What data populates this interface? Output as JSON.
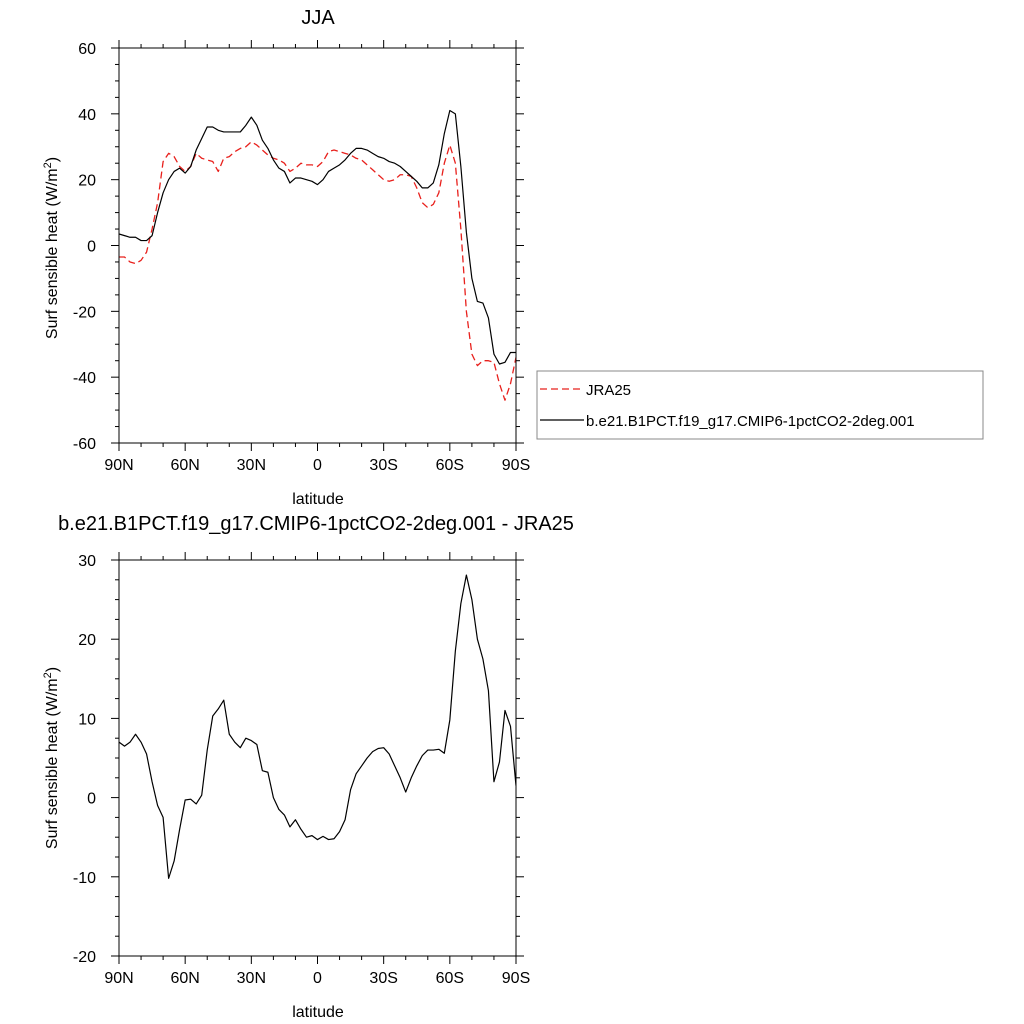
{
  "chart_data": [
    {
      "type": "line",
      "title": "JJA",
      "xlabel": "latitude",
      "ylabel": "Surf sensible heat (W/m2)",
      "ylabel_main": "Surf sensible heat (W/m",
      "ylabel_sup": "2",
      "ylabel_close": ")",
      "xlim": [
        90,
        -90
      ],
      "ylim": [
        -60,
        60
      ],
      "xticks": [
        90,
        60,
        30,
        0,
        -30,
        -60,
        -90
      ],
      "xtick_labels": [
        "90N",
        "60N",
        "30N",
        "0",
        "30S",
        "60S",
        "90S"
      ],
      "yticks": [
        -60,
        -40,
        -20,
        0,
        20,
        40,
        60
      ],
      "ytick_labels": [
        "-60",
        "-40",
        "-20",
        "0",
        "20",
        "40",
        "60"
      ],
      "legend_position": "right-outside",
      "series": [
        {
          "name": "JRA25",
          "color": "#e8201c",
          "dash": "dashed",
          "points": [
            [
              90,
              -3.5
            ],
            [
              87.5,
              -3.5
            ],
            [
              85,
              -5
            ],
            [
              82.5,
              -5.5
            ],
            [
              80,
              -4.5
            ],
            [
              77.5,
              -2
            ],
            [
              75,
              5
            ],
            [
              72.5,
              13
            ],
            [
              70,
              25.5
            ],
            [
              67.5,
              28
            ],
            [
              65,
              27
            ],
            [
              62.5,
              24
            ],
            [
              60,
              22.5
            ],
            [
              57.5,
              24
            ],
            [
              55,
              28
            ],
            [
              52.5,
              26.5
            ],
            [
              50,
              26
            ],
            [
              47.5,
              25.5
            ],
            [
              45,
              22.5
            ],
            [
              42.5,
              26.5
            ],
            [
              40,
              27
            ],
            [
              37.5,
              28.5
            ],
            [
              35,
              29.5
            ],
            [
              32.5,
              30
            ],
            [
              30,
              31.5
            ],
            [
              27.5,
              30.5
            ],
            [
              25,
              29
            ],
            [
              22.5,
              27.5
            ],
            [
              20,
              26.5
            ],
            [
              17.5,
              26
            ],
            [
              15,
              25
            ],
            [
              12.5,
              22.5
            ],
            [
              10,
              23.5
            ],
            [
              7.5,
              25
            ],
            [
              5,
              24.5
            ],
            [
              2.5,
              24.5
            ],
            [
              0,
              24
            ],
            [
              -2.5,
              25.5
            ],
            [
              -5,
              28.5
            ],
            [
              -7.5,
              29
            ],
            [
              -10,
              28.5
            ],
            [
              -12.5,
              28
            ],
            [
              -15,
              27.5
            ],
            [
              -17.5,
              26.5
            ],
            [
              -20,
              26
            ],
            [
              -22.5,
              24.5
            ],
            [
              -25,
              23
            ],
            [
              -27.5,
              21.5
            ],
            [
              -30,
              20
            ],
            [
              -32.5,
              19.5
            ],
            [
              -35,
              20
            ],
            [
              -37.5,
              21.5
            ],
            [
              -40,
              21.5
            ],
            [
              -42.5,
              21
            ],
            [
              -45,
              17.5
            ],
            [
              -47.5,
              13
            ],
            [
              -50,
              11.5
            ],
            [
              -52.5,
              12.5
            ],
            [
              -55,
              16
            ],
            [
              -57.5,
              25
            ],
            [
              -60,
              30.5
            ],
            [
              -62.5,
              25
            ],
            [
              -65,
              5
            ],
            [
              -67.5,
              -20
            ],
            [
              -70,
              -33
            ],
            [
              -72.5,
              -36.5
            ],
            [
              -75,
              -35
            ],
            [
              -77.5,
              -35
            ],
            [
              -80,
              -35.5
            ],
            [
              -82.5,
              -42
            ],
            [
              -85,
              -47
            ],
            [
              -87.5,
              -42
            ],
            [
              -90,
              -34
            ]
          ]
        },
        {
          "name": "b.e21.B1PCT.f19_g17.CMIP6-1pctCO2-2deg.001",
          "color": "#000000",
          "dash": "solid",
          "points": [
            [
              90,
              3.5
            ],
            [
              87.5,
              3
            ],
            [
              85,
              2.5
            ],
            [
              82.5,
              2.5
            ],
            [
              80,
              1.5
            ],
            [
              77.5,
              1.5
            ],
            [
              75,
              3
            ],
            [
              72.5,
              10
            ],
            [
              70,
              16
            ],
            [
              67.5,
              20
            ],
            [
              65,
              22.5
            ],
            [
              62.5,
              23.5
            ],
            [
              60,
              22
            ],
            [
              57.5,
              24
            ],
            [
              55,
              29
            ],
            [
              52.5,
              32.5
            ],
            [
              50,
              36
            ],
            [
              47.5,
              36
            ],
            [
              45,
              35
            ],
            [
              42.5,
              34.5
            ],
            [
              40,
              34.5
            ],
            [
              37.5,
              34.5
            ],
            [
              35,
              34.5
            ],
            [
              32.5,
              36.5
            ],
            [
              30,
              39
            ],
            [
              27.5,
              36.5
            ],
            [
              25,
              32
            ],
            [
              22.5,
              29.5
            ],
            [
              20,
              26
            ],
            [
              17.5,
              23.5
            ],
            [
              15,
              22.5
            ],
            [
              12.5,
              19
            ],
            [
              10,
              20.5
            ],
            [
              7.5,
              20.5
            ],
            [
              5,
              20
            ],
            [
              2.5,
              19.5
            ],
            [
              0,
              18.5
            ],
            [
              -2.5,
              20
            ],
            [
              -5,
              22.5
            ],
            [
              -7.5,
              23.5
            ],
            [
              -10,
              24.5
            ],
            [
              -12.5,
              26
            ],
            [
              -15,
              28
            ],
            [
              -17.5,
              29.5
            ],
            [
              -20,
              29.5
            ],
            [
              -22.5,
              29
            ],
            [
              -25,
              28
            ],
            [
              -27.5,
              27
            ],
            [
              -30,
              26.5
            ],
            [
              -32.5,
              25.5
            ],
            [
              -35,
              25
            ],
            [
              -37.5,
              24
            ],
            [
              -40,
              22.5
            ],
            [
              -42.5,
              21
            ],
            [
              -45,
              19.5
            ],
            [
              -47.5,
              17.5
            ],
            [
              -50,
              17.5
            ],
            [
              -52.5,
              19
            ],
            [
              -55,
              24.5
            ],
            [
              -57.5,
              34
            ],
            [
              -60,
              41
            ],
            [
              -62.5,
              40
            ],
            [
              -65,
              24
            ],
            [
              -67.5,
              4
            ],
            [
              -70,
              -10
            ],
            [
              -72.5,
              -17
            ],
            [
              -75,
              -17.5
            ],
            [
              -77.5,
              -22
            ],
            [
              -80,
              -33
            ],
            [
              -82.5,
              -36
            ],
            [
              -85,
              -35.5
            ],
            [
              -87.5,
              -32.5
            ],
            [
              -90,
              -32.5
            ]
          ]
        }
      ]
    },
    {
      "type": "line",
      "title": "b.e21.B1PCT.f19_g17.CMIP6-1pctCO2-2deg.001 - JRA25",
      "xlabel": "latitude",
      "ylabel": "Surf sensible heat (W/m2)",
      "ylabel_main": "Surf sensible heat (W/m",
      "ylabel_sup": "2",
      "ylabel_close": ")",
      "xlim": [
        90,
        -90
      ],
      "ylim": [
        -20,
        30
      ],
      "xticks": [
        90,
        60,
        30,
        0,
        -30,
        -60,
        -90
      ],
      "xtick_labels": [
        "90N",
        "60N",
        "30N",
        "0",
        "30S",
        "60S",
        "90S"
      ],
      "yticks": [
        -20,
        -10,
        0,
        10,
        20,
        30
      ],
      "ytick_labels": [
        "-20",
        "-10",
        "0",
        "10",
        "20",
        "30"
      ],
      "series": [
        {
          "color": "#000000",
          "dash": "solid",
          "points": [
            [
              90,
              7
            ],
            [
              87.5,
              6.5
            ],
            [
              85,
              7
            ],
            [
              82.5,
              8
            ],
            [
              80,
              7
            ],
            [
              77.5,
              5.5
            ],
            [
              75,
              2
            ],
            [
              72.5,
              -1
            ],
            [
              70,
              -2.5
            ],
            [
              67.5,
              -10.2
            ],
            [
              65,
              -8
            ],
            [
              62.5,
              -4
            ],
            [
              60,
              -0.3
            ],
            [
              57.5,
              -0.2
            ],
            [
              55,
              -0.8
            ],
            [
              52.5,
              0.3
            ],
            [
              50,
              6
            ],
            [
              47.5,
              10.3
            ],
            [
              45,
              11.2
            ],
            [
              42.5,
              12.3
            ],
            [
              40,
              8
            ],
            [
              37.5,
              7
            ],
            [
              35,
              6.3
            ],
            [
              32.5,
              7.5
            ],
            [
              30,
              7.2
            ],
            [
              27.5,
              6.7
            ],
            [
              25,
              3.4
            ],
            [
              22.5,
              3.2
            ],
            [
              20,
              0
            ],
            [
              17.5,
              -1.5
            ],
            [
              15,
              -2.2
            ],
            [
              12.5,
              -3.7
            ],
            [
              10,
              -2.8
            ],
            [
              7.5,
              -4
            ],
            [
              5,
              -5
            ],
            [
              2.5,
              -4.8
            ],
            [
              0,
              -5.3
            ],
            [
              -2.5,
              -4.9
            ],
            [
              -5,
              -5.3
            ],
            [
              -7.5,
              -5.2
            ],
            [
              -10,
              -4.3
            ],
            [
              -12.5,
              -2.8
            ],
            [
              -15,
              1
            ],
            [
              -17.5,
              3
            ],
            [
              -20,
              4
            ],
            [
              -22.5,
              5
            ],
            [
              -25,
              5.8
            ],
            [
              -27.5,
              6.2
            ],
            [
              -30,
              6.3
            ],
            [
              -32.5,
              5.5
            ],
            [
              -35,
              4
            ],
            [
              -37.5,
              2.5
            ],
            [
              -40,
              0.7
            ],
            [
              -42.5,
              2.5
            ],
            [
              -45,
              4
            ],
            [
              -47.5,
              5.3
            ],
            [
              -50,
              6
            ],
            [
              -52.5,
              6
            ],
            [
              -55,
              6.1
            ],
            [
              -57.5,
              5.6
            ],
            [
              -60,
              9.8
            ],
            [
              -62.5,
              18.5
            ],
            [
              -65,
              24.5
            ],
            [
              -67.5,
              28.1
            ],
            [
              -70,
              25
            ],
            [
              -72.5,
              20
            ],
            [
              -75,
              17.5
            ],
            [
              -77.5,
              13.5
            ],
            [
              -80,
              2
            ],
            [
              -82.5,
              4.5
            ],
            [
              -85,
              11
            ],
            [
              -87.5,
              9
            ],
            [
              -90,
              1.5
            ]
          ]
        }
      ]
    }
  ]
}
